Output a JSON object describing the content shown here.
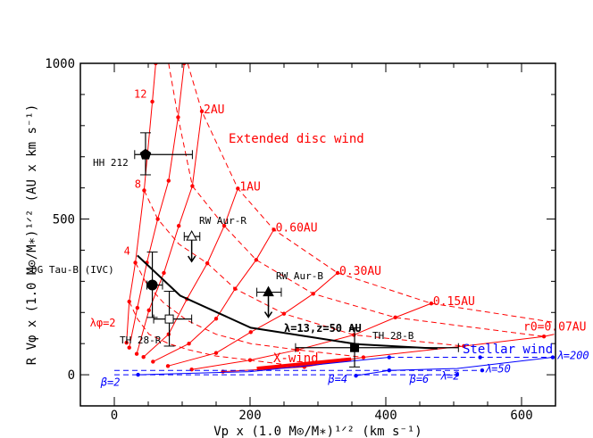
{
  "chart_data": {
    "type": "line",
    "xlabel": "Vp x (1.0 M⊙/M∗)¹ᐟ² (km s⁻¹)",
    "ylabel": "R Vφ x (1.0 M⊙/M∗)¹ᐟ² (AU x km s⁻¹)",
    "xlim": [
      -50,
      650
    ],
    "ylim": [
      -100,
      1000
    ],
    "xticks": [
      0,
      200,
      400,
      600
    ],
    "yticks": [
      0,
      500,
      1000
    ],
    "grid": false,
    "colors": {
      "disc_wind": "#ff0000",
      "stellar_wind": "#0000ff",
      "model": "#000000"
    },
    "disc_wind_solid": [
      {
        "label": "",
        "points": [
          [
            18,
            103
          ],
          [
            22,
            235
          ],
          [
            31,
            360
          ],
          [
            44,
            592
          ],
          [
            56,
            877
          ],
          [
            61,
            1000
          ]
        ]
      },
      {
        "label": "",
        "points": [
          [
            22,
            87
          ],
          [
            34,
            215
          ],
          [
            48,
            360
          ],
          [
            64,
            500
          ],
          [
            80,
            623
          ],
          [
            94,
            827
          ],
          [
            103,
            1000
          ]
        ]
      },
      {
        "label": "2AU",
        "points": [
          [
            33,
            67
          ],
          [
            51,
            207
          ],
          [
            73,
            327
          ],
          [
            95,
            478
          ],
          [
            115,
            606
          ],
          [
            129,
            846
          ]
        ]
      },
      {
        "label": "1AU",
        "points": [
          [
            43,
            57
          ],
          [
            80,
            130
          ],
          [
            107,
            243
          ],
          [
            137,
            358
          ],
          [
            162,
            478
          ],
          [
            182,
            598
          ]
        ]
      },
      {
        "label": "0.60AU",
        "points": [
          [
            57,
            42
          ],
          [
            110,
            100
          ],
          [
            150,
            180
          ],
          [
            178,
            276
          ],
          [
            209,
            369
          ],
          [
            235,
            466
          ]
        ]
      },
      {
        "label": "0.30AU",
        "points": [
          [
            79,
            28
          ],
          [
            150,
            70
          ],
          [
            201,
            137
          ],
          [
            250,
            196
          ],
          [
            293,
            260
          ],
          [
            329,
            327
          ]
        ]
      },
      {
        "label": "0.15AU",
        "points": [
          [
            114,
            17
          ],
          [
            200,
            47
          ],
          [
            270,
            80
          ],
          [
            353,
            128
          ],
          [
            414,
            184
          ],
          [
            467,
            229
          ]
        ]
      },
      {
        "label": "r0=0.07AU",
        "points": [
          [
            160,
            10
          ],
          [
            280,
            25
          ],
          [
            367,
            56
          ],
          [
            515,
            92
          ],
          [
            633,
            123
          ],
          [
            648,
            130
          ]
        ]
      }
    ],
    "disc_wind_dashed": [
      [
        [
          108,
          1000
        ],
        [
          129,
          846
        ],
        [
          182,
          598
        ],
        [
          235,
          466
        ],
        [
          329,
          327
        ],
        [
          467,
          229
        ],
        [
          648,
          168
        ]
      ],
      [
        [
          80,
          1000
        ],
        [
          94,
          827
        ],
        [
          115,
          606
        ],
        [
          162,
          478
        ],
        [
          209,
          369
        ],
        [
          293,
          260
        ],
        [
          414,
          184
        ],
        [
          633,
          123
        ]
      ],
      [
        [
          44,
          592
        ],
        [
          64,
          500
        ],
        [
          95,
          420
        ],
        [
          137,
          358
        ],
        [
          178,
          276
        ],
        [
          250,
          196
        ],
        [
          353,
          128
        ],
        [
          515,
          92
        ]
      ],
      [
        [
          31,
          360
        ],
        [
          48,
          290
        ],
        [
          73,
          230
        ],
        [
          107,
          175
        ],
        [
          150,
          130
        ],
        [
          201,
          100
        ],
        [
          270,
          80
        ],
        [
          367,
          56
        ]
      ],
      [
        [
          22,
          235
        ],
        [
          34,
          180
        ],
        [
          51,
          130
        ],
        [
          80,
          100
        ],
        [
          110,
          80
        ],
        [
          150,
          60
        ],
        [
          200,
          47
        ],
        [
          280,
          25
        ]
      ]
    ],
    "lambda_phi_labels": [
      {
        "text": "12",
        "x": 29,
        "y": 890
      },
      {
        "text": "8",
        "x": 30,
        "y": 600
      },
      {
        "text": "4",
        "x": 14,
        "y": 385
      },
      {
        "text": "λφ=2",
        "x": -36,
        "y": 155
      }
    ],
    "region_labels": {
      "extended": "Extended disc wind",
      "xwind": "X-wind",
      "stellar": "Stellar wind"
    },
    "xwind": [
      [
        210,
        20
      ],
      [
        349,
        50
      ]
    ],
    "stellar_wind_solid": [
      [
        [
          35,
          0
        ],
        [
          200,
          10
        ],
        [
          405,
          56
        ]
      ],
      [
        [
          356,
          -3
        ],
        [
          405,
          14
        ],
        [
          505,
          20
        ],
        [
          646,
          56
        ]
      ]
    ],
    "stellar_wind_dashed": [
      [
        [
          405,
          56
        ],
        [
          646,
          56
        ]
      ],
      [
        [
          0,
          14
        ],
        [
          542,
          14
        ]
      ],
      [
        [
          0,
          0
        ],
        [
          505,
          0
        ]
      ]
    ],
    "stellar_points": [
      [
        35,
        0
      ],
      [
        405,
        56
      ],
      [
        539,
        56
      ],
      [
        646,
        56
      ],
      [
        356,
        -3
      ],
      [
        405,
        14
      ],
      [
        505,
        0
      ],
      [
        542,
        14
      ]
    ],
    "stellar_labels": [
      {
        "text": "β=2",
        "x": -20,
        "y": -35
      },
      {
        "text": "β=4",
        "x": 315,
        "y": -25
      },
      {
        "text": "β=6",
        "x": 435,
        "y": -25
      },
      {
        "text": "λ=2",
        "x": 480,
        "y": -15
      },
      {
        "text": "λ=50",
        "x": 546,
        "y": 8
      },
      {
        "text": "λ=200",
        "x": 652,
        "y": 50
      }
    ],
    "model_curve": {
      "label": "λ=13,z=50 AU",
      "points": [
        [
          34,
          383
        ],
        [
          97,
          254
        ],
        [
          201,
          151
        ],
        [
          358,
          98
        ],
        [
          476,
          84
        ]
      ]
    },
    "observations": [
      {
        "name": "HH 212",
        "marker": "filled-pentagon",
        "x": 46,
        "y": 707,
        "xerr": [
          30,
          115
        ],
        "yerr": [
          642,
          777
        ]
      },
      {
        "name": "DG Tau-B (IVC)",
        "marker": "filled-circle",
        "x": 56,
        "y": 288,
        "xerr": [
          48,
          71
        ],
        "yerr": [
          184,
          394
        ]
      },
      {
        "name": "TH 28-R",
        "marker": "open-square",
        "x": 81,
        "y": 179,
        "xerr": [
          58,
          114
        ],
        "yerr": [
          92,
          268
        ]
      },
      {
        "name": "RW Aur-R",
        "marker": "open-triangle",
        "x": 114,
        "y": 444,
        "xerr": [
          103,
          126
        ],
        "upper_limit": true
      },
      {
        "name": "RW Aur-B",
        "marker": "filled-triangle",
        "x": 227,
        "y": 265,
        "xerr": [
          210,
          246
        ],
        "upper_limit": true
      },
      {
        "name": "TH 28-B",
        "marker": "filled-square",
        "x": 354,
        "y": 87,
        "xerr": [
          267,
          507
        ],
        "yerr": [
          25,
          151
        ]
      }
    ]
  }
}
